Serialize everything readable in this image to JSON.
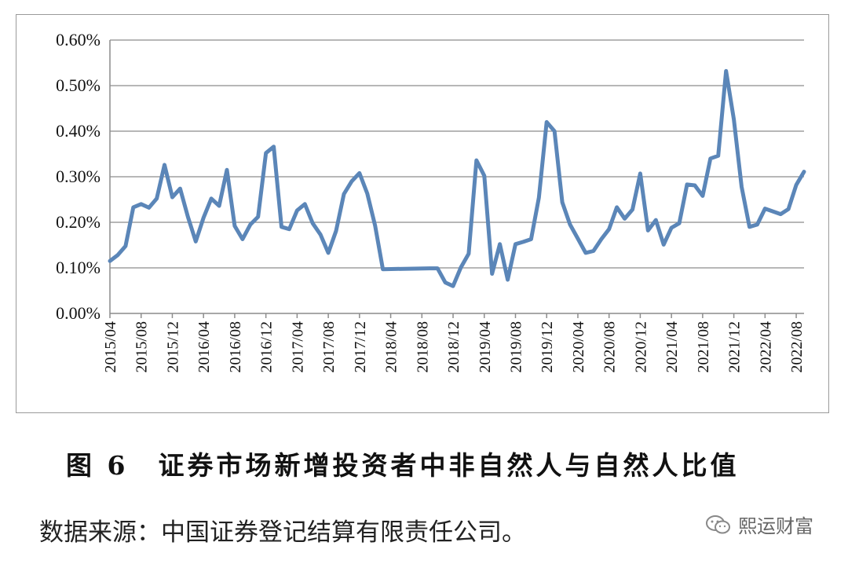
{
  "caption": {
    "figure_label": "图 6",
    "title": "证券市场新增投资者中非自然人与自然人比值"
  },
  "source_note": "数据来源：中国证券登记结算有限责任公司。",
  "watermark": {
    "icon": "wechat-icon",
    "text": "熙运财富"
  },
  "chart_data": {
    "type": "line",
    "title": "",
    "xlabel": "",
    "ylabel": "",
    "ylim": [
      0,
      0.6
    ],
    "y_ticks": [
      "0.00%",
      "0.10%",
      "0.20%",
      "0.30%",
      "0.40%",
      "0.50%",
      "0.60%"
    ],
    "x_tick_labels": [
      "2015/04",
      "2015/08",
      "2015/12",
      "2016/04",
      "2016/08",
      "2016/12",
      "2017/04",
      "2017/08",
      "2017/12",
      "2018/04",
      "2018/08",
      "2018/12",
      "2019/04",
      "2019/08",
      "2019/12",
      "2020/04",
      "2020/08",
      "2020/12",
      "2021/04",
      "2021/08",
      "2021/12",
      "2022/04",
      "2022/08"
    ],
    "grid": true,
    "legend": false,
    "line_color": "#5b86b8",
    "series": [
      {
        "values": [
          [
            "2015/04",
            0.115
          ],
          [
            "2015/05",
            0.128
          ],
          [
            "2015/06",
            0.148
          ],
          [
            "2015/07",
            0.233
          ],
          [
            "2015/08",
            0.24
          ],
          [
            "2015/09",
            0.232
          ],
          [
            "2015/10",
            0.252
          ],
          [
            "2015/11",
            0.326
          ],
          [
            "2015/12",
            0.255
          ],
          [
            "2016/01",
            0.274
          ],
          [
            "2016/02",
            0.212
          ],
          [
            "2016/03",
            0.158
          ],
          [
            "2016/04",
            0.21
          ],
          [
            "2016/05",
            0.252
          ],
          [
            "2016/06",
            0.236
          ],
          [
            "2016/07",
            0.315
          ],
          [
            "2016/08",
            0.192
          ],
          [
            "2016/09",
            0.163
          ],
          [
            "2016/10",
            0.195
          ],
          [
            "2016/11",
            0.212
          ],
          [
            "2016/12",
            0.352
          ],
          [
            "2017/01",
            0.366
          ],
          [
            "2017/02",
            0.19
          ],
          [
            "2017/03",
            0.185
          ],
          [
            "2017/04",
            0.226
          ],
          [
            "2017/05",
            0.24
          ],
          [
            "2017/06",
            0.198
          ],
          [
            "2017/07",
            0.173
          ],
          [
            "2017/08",
            0.133
          ],
          [
            "2017/09",
            0.181
          ],
          [
            "2017/10",
            0.262
          ],
          [
            "2017/11",
            0.29
          ],
          [
            "2017/12",
            0.308
          ],
          [
            "2018/01",
            0.263
          ],
          [
            "2018/02",
            0.193
          ],
          [
            "2018/03",
            0.097
          ],
          [
            "2018/09",
            0.099
          ],
          [
            "2018/10",
            0.099
          ],
          [
            "2018/11",
            0.068
          ],
          [
            "2018/12",
            0.06
          ],
          [
            "2019/01",
            0.101
          ],
          [
            "2019/02",
            0.131
          ],
          [
            "2019/03",
            0.336
          ],
          [
            "2019/04",
            0.302
          ],
          [
            "2019/05",
            0.087
          ],
          [
            "2019/06",
            0.152
          ],
          [
            "2019/07",
            0.074
          ],
          [
            "2019/08",
            0.152
          ],
          [
            "2019/09",
            0.157
          ],
          [
            "2019/10",
            0.163
          ],
          [
            "2019/11",
            0.254
          ],
          [
            "2019/12",
            0.42
          ],
          [
            "2020/01",
            0.4
          ],
          [
            "2020/02",
            0.244
          ],
          [
            "2020/03",
            0.195
          ],
          [
            "2020/04",
            0.164
          ],
          [
            "2020/05",
            0.133
          ],
          [
            "2020/06",
            0.137
          ],
          [
            "2020/07",
            0.163
          ],
          [
            "2020/08",
            0.185
          ],
          [
            "2020/09",
            0.233
          ],
          [
            "2020/10",
            0.208
          ],
          [
            "2020/11",
            0.228
          ],
          [
            "2020/12",
            0.307
          ],
          [
            "2021/01",
            0.182
          ],
          [
            "2021/02",
            0.205
          ],
          [
            "2021/03",
            0.151
          ],
          [
            "2021/04",
            0.188
          ],
          [
            "2021/05",
            0.198
          ],
          [
            "2021/06",
            0.283
          ],
          [
            "2021/07",
            0.281
          ],
          [
            "2021/08",
            0.258
          ],
          [
            "2021/09",
            0.34
          ],
          [
            "2021/10",
            0.346
          ],
          [
            "2021/11",
            0.532
          ],
          [
            "2021/12",
            0.426
          ],
          [
            "2022/01",
            0.278
          ],
          [
            "2022/02",
            0.19
          ],
          [
            "2022/03",
            0.195
          ],
          [
            "2022/04",
            0.23
          ],
          [
            "2022/05",
            0.224
          ],
          [
            "2022/06",
            0.218
          ],
          [
            "2022/07",
            0.229
          ],
          [
            "2022/08",
            0.282
          ],
          [
            "2022/09",
            0.311
          ]
        ]
      }
    ]
  }
}
